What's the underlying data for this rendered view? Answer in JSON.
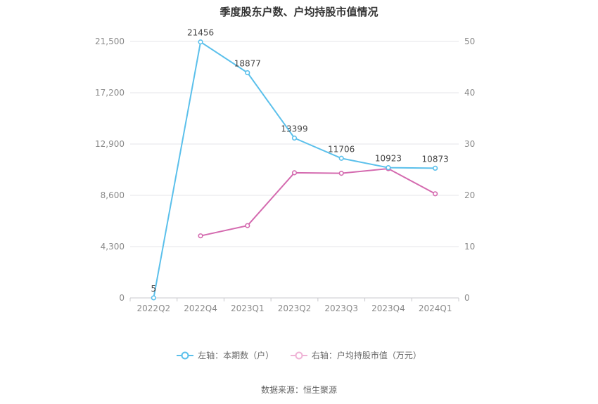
{
  "title": "季度股东户数、户均持股市值情况",
  "source_text": "数据来源：恒生聚源",
  "colors": {
    "left_series": "#5bc0eb",
    "right_series": "#d46aaf",
    "grid": "#e6e6ea"
  },
  "chart_data": {
    "type": "line",
    "title": "季度股东户数、户均持股市值情况",
    "categories": [
      "2022Q2",
      "2022Q4",
      "2023Q1",
      "2023Q2",
      "2023Q3",
      "2023Q4",
      "2024Q1"
    ],
    "y_left": {
      "min": 0,
      "max": 21500,
      "ticks": [
        "0",
        "4,300",
        "8,600",
        "12,900",
        "17,200",
        "21,500"
      ]
    },
    "y_right": {
      "min": 0,
      "max": 50,
      "ticks": [
        "0",
        "10",
        "20",
        "30",
        "40",
        "50"
      ]
    },
    "grid": true,
    "legend_position": "bottom",
    "series": [
      {
        "name": "左轴：本期数（户）",
        "axis": "left",
        "values": [
          5,
          21456,
          18877,
          13399,
          11706,
          10923,
          10873
        ],
        "labels": [
          "5",
          "21456",
          "18877",
          "13399",
          "11706",
          "10923",
          "10873"
        ]
      },
      {
        "name": "右轴：户均持股市值（万元）",
        "axis": "right",
        "values": [
          null,
          12.1,
          14.1,
          24.4,
          24.3,
          25.2,
          20.3
        ]
      }
    ]
  }
}
